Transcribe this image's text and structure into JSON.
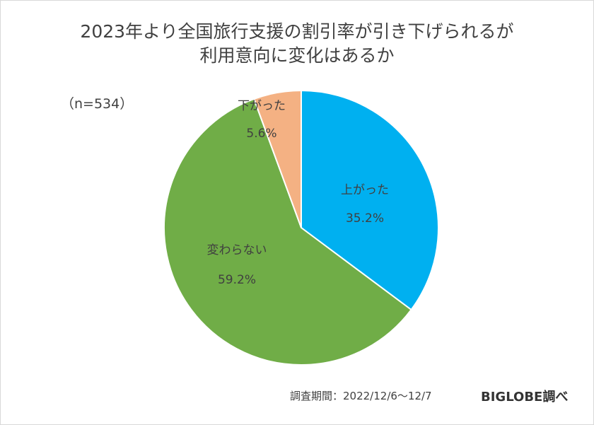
{
  "chart_data": {
    "type": "pie",
    "title_lines": [
      "2023年より全国旅行支援の割引率が引き下げられるが",
      "利用意向に変化はあるか"
    ],
    "sample_size": "（n=534）",
    "slices": [
      {
        "label": "上がった",
        "value": 35.2,
        "value_text": "35.2%",
        "color": "#00b0f0"
      },
      {
        "label": "変わらない",
        "value": 59.2,
        "value_text": "59.2%",
        "color": "#70ad47"
      },
      {
        "label": "下がった",
        "value": 5.6,
        "value_text": "5.6%",
        "color": "#f4b183"
      }
    ]
  },
  "footer": {
    "period": "調査期間：2022/12/6～12/7",
    "brand": "BIGLOBE調べ"
  }
}
